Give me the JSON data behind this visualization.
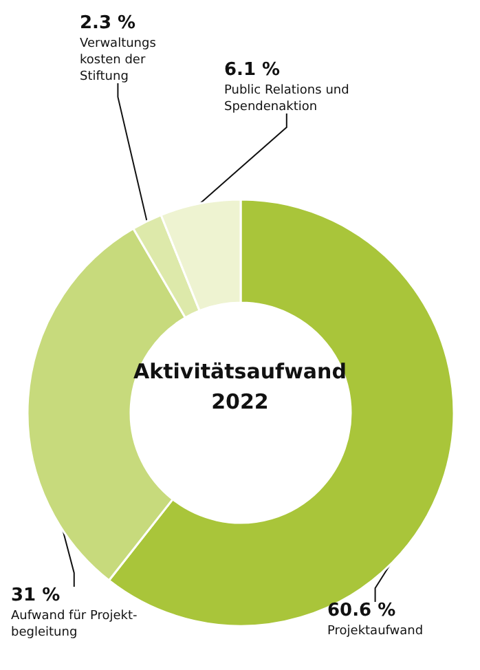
{
  "chart_data": {
    "type": "donut",
    "title": "Aktivitätsaufwand\n2022",
    "categories": [
      "Projektaufwand",
      "Aufwand für Projekt-\nbegleitung",
      "Verwaltungs\nkosten der\nStiftung",
      "Public Relations und\nSpendenaktion"
    ],
    "values": [
      60.6,
      31,
      2.3,
      6.1
    ],
    "colors": [
      "#a9c53a",
      "#c7da7c",
      "#dde9aa",
      "#eef3d1"
    ],
    "value_labels": [
      "60.6 %",
      "31 %",
      "2.3 %",
      "6.1 %"
    ]
  }
}
